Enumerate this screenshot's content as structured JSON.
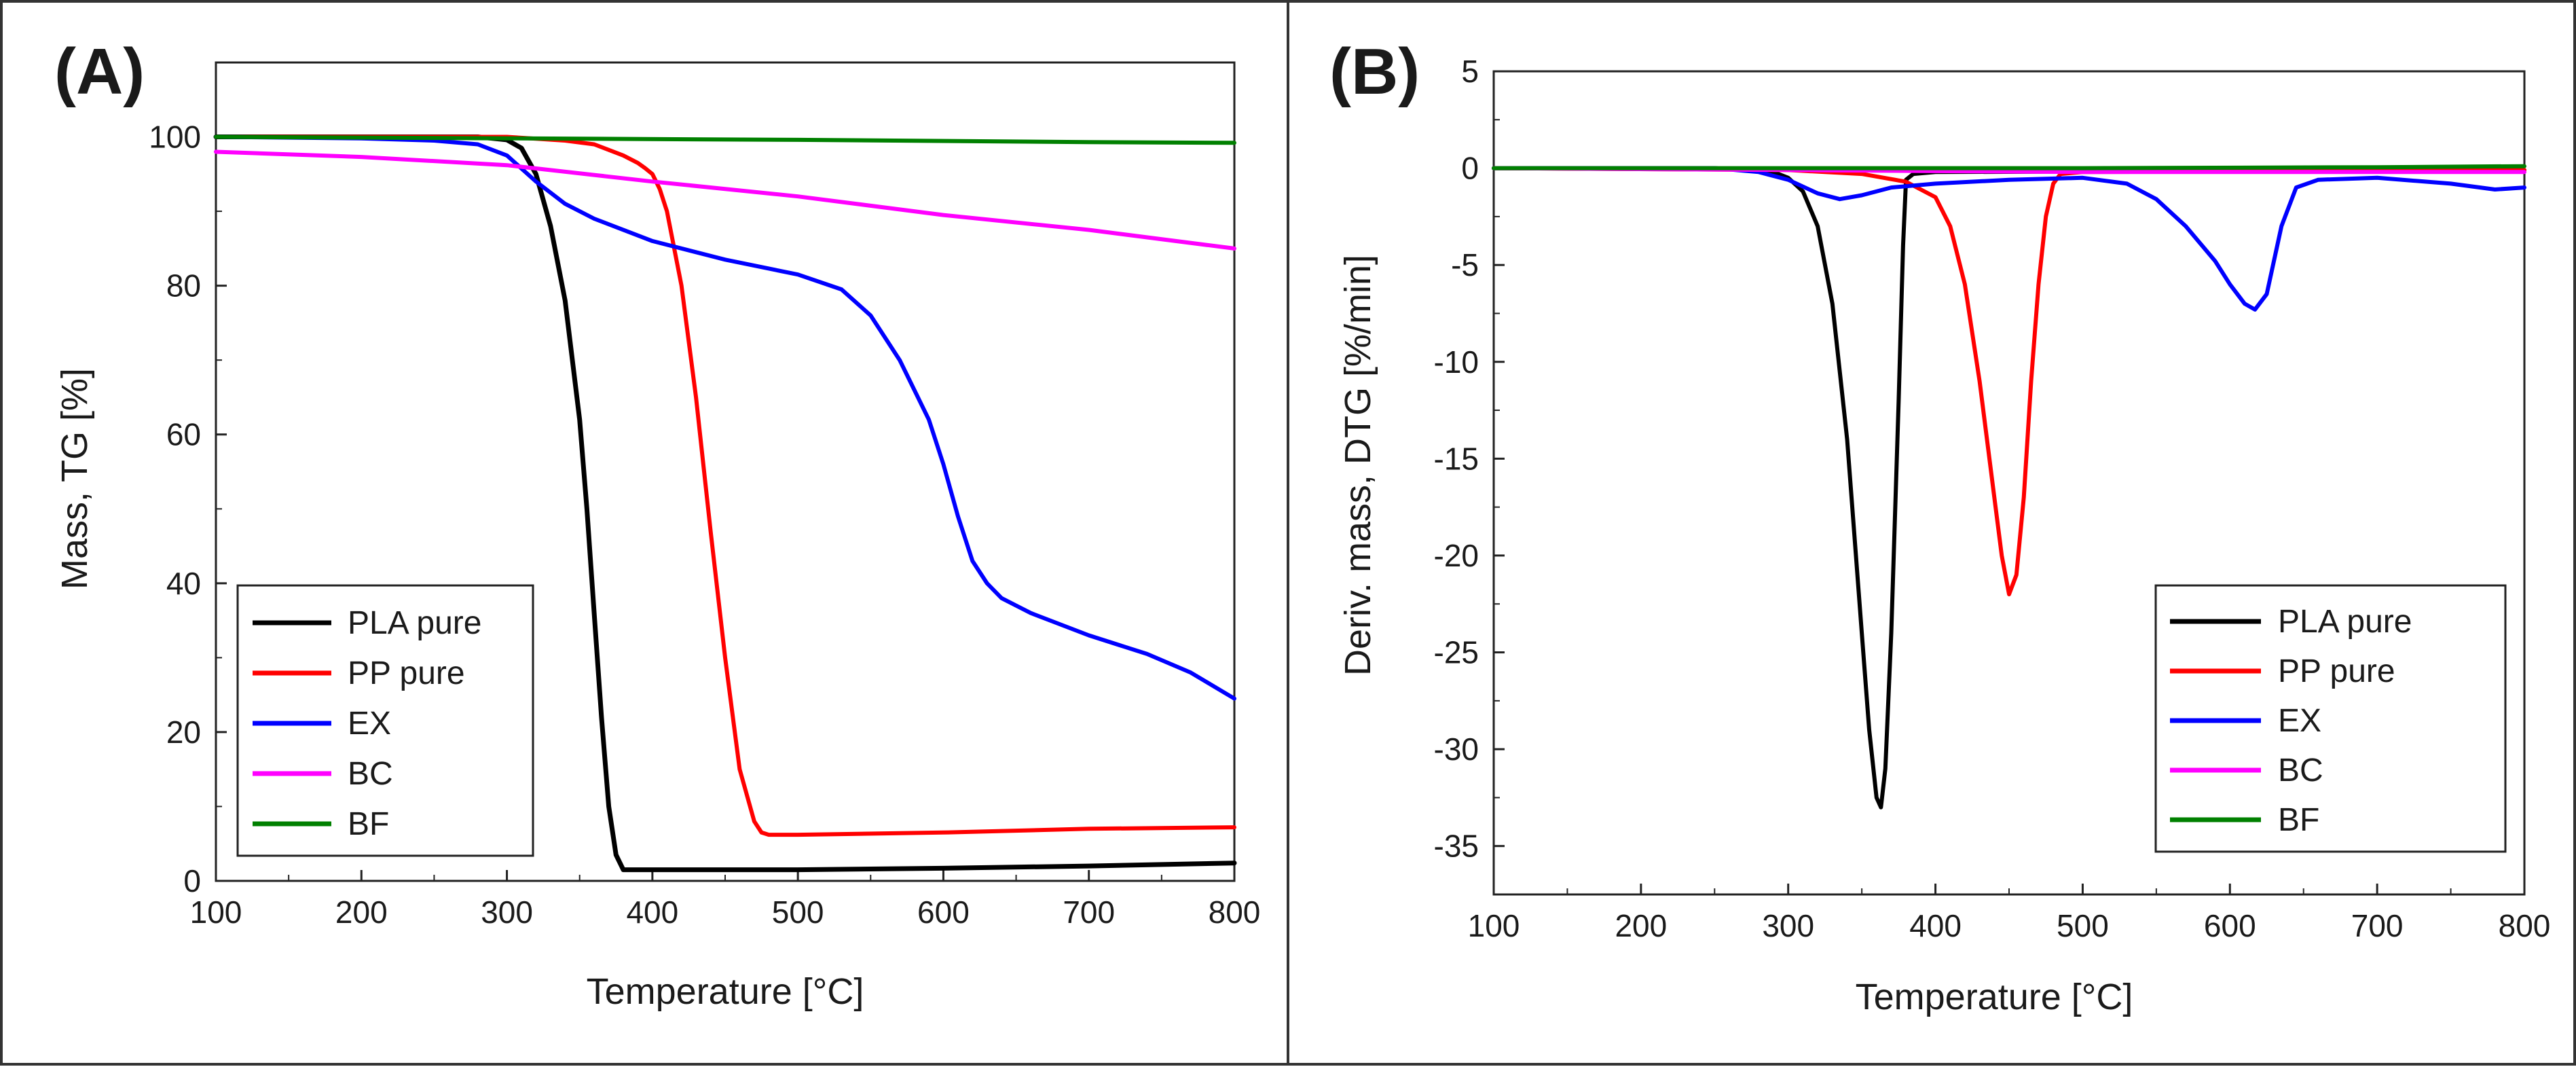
{
  "chart_data": [
    {
      "panel": "(A)",
      "type": "line",
      "xlabel": "Temperature [°C]",
      "ylabel": "Mass, TG [%]",
      "xlim": [
        100,
        800
      ],
      "ylim": [
        0,
        110
      ],
      "xticks": [
        100,
        200,
        300,
        400,
        500,
        600,
        700,
        800
      ],
      "yticks": [
        0,
        20,
        40,
        60,
        80,
        100
      ],
      "legend_position": "bottom-left",
      "series": [
        {
          "name": "PLA pure",
          "color": "#000000",
          "x": [
            100,
            200,
            280,
            300,
            310,
            320,
            330,
            340,
            350,
            355,
            360,
            365,
            370,
            375,
            380,
            400,
            500,
            600,
            700,
            800
          ],
          "y": [
            100,
            100,
            100,
            99.6,
            98.5,
            95,
            88,
            78,
            62,
            50,
            36,
            22,
            10,
            3.5,
            1.5,
            1.5,
            1.5,
            1.7,
            2,
            2.4
          ]
        },
        {
          "name": "PP pure",
          "color": "#ff0000",
          "x": [
            100,
            300,
            340,
            360,
            380,
            390,
            395,
            400,
            405,
            410,
            420,
            430,
            440,
            450,
            460,
            470,
            475,
            480,
            500,
            600,
            700,
            800
          ],
          "y": [
            100,
            100,
            99.5,
            99,
            97.5,
            96.5,
            95.8,
            95,
            93,
            90,
            80,
            65,
            47,
            30,
            15,
            8,
            6.5,
            6.2,
            6.2,
            6.5,
            7,
            7.2
          ]
        },
        {
          "name": "EX",
          "color": "#0000ff",
          "x": [
            100,
            200,
            250,
            280,
            300,
            320,
            340,
            360,
            400,
            450,
            500,
            530,
            550,
            570,
            590,
            600,
            610,
            620,
            630,
            640,
            660,
            700,
            740,
            770,
            800
          ],
          "y": [
            100,
            99.8,
            99.5,
            99,
            97.5,
            94,
            91,
            89,
            86,
            83.5,
            81.5,
            79.5,
            76,
            70,
            62,
            56,
            49,
            43,
            40,
            38,
            36,
            33,
            30.5,
            28,
            24.5
          ]
        },
        {
          "name": "BC",
          "color": "#ff00ff",
          "x": [
            100,
            200,
            300,
            400,
            500,
            600,
            700,
            800
          ],
          "y": [
            98,
            97.3,
            96.2,
            94,
            92,
            89.5,
            87.5,
            85
          ]
        },
        {
          "name": "BF",
          "color": "#008000",
          "x": [
            100,
            300,
            500,
            700,
            800
          ],
          "y": [
            100,
            99.8,
            99.6,
            99.3,
            99.2
          ]
        }
      ]
    },
    {
      "panel": "(B)",
      "type": "line",
      "xlabel": "Temperature [°C]",
      "ylabel": "Deriv. mass, DTG [%/min]",
      "xlim": [
        100,
        800
      ],
      "ylim": [
        -37.5,
        5
      ],
      "xticks": [
        100,
        200,
        300,
        400,
        500,
        600,
        700,
        800
      ],
      "yticks": [
        5,
        0,
        -5,
        -10,
        -15,
        -20,
        -25,
        -30,
        -35
      ],
      "legend_position": "bottom-right",
      "series": [
        {
          "name": "PLA pure",
          "color": "#000000",
          "x": [
            100,
            250,
            290,
            300,
            310,
            320,
            330,
            340,
            350,
            355,
            360,
            363,
            366,
            370,
            375,
            378,
            380,
            385,
            400,
            800
          ],
          "y": [
            0,
            0,
            -0.2,
            -0.5,
            -1.2,
            -3,
            -7,
            -14,
            -24,
            -29,
            -32.5,
            -33,
            -31,
            -24,
            -12,
            -4,
            -0.6,
            -0.3,
            -0.2,
            -0.1
          ]
        },
        {
          "name": "PP pure",
          "color": "#ff0000",
          "x": [
            100,
            300,
            350,
            380,
            400,
            410,
            420,
            430,
            440,
            445,
            450,
            455,
            460,
            465,
            470,
            475,
            480,
            485,
            500,
            800
          ],
          "y": [
            0,
            -0.1,
            -0.3,
            -0.7,
            -1.5,
            -3,
            -6,
            -11,
            -17,
            -20,
            -22,
            -21,
            -17,
            -11,
            -6,
            -2.5,
            -0.8,
            -0.3,
            -0.2,
            -0.1
          ]
        },
        {
          "name": "EX",
          "color": "#0000ff",
          "x": [
            100,
            250,
            280,
            300,
            320,
            335,
            350,
            370,
            400,
            450,
            500,
            530,
            550,
            570,
            590,
            600,
            610,
            617,
            625,
            635,
            645,
            660,
            700,
            750,
            780,
            800
          ],
          "y": [
            0,
            0,
            -0.2,
            -0.6,
            -1.3,
            -1.6,
            -1.4,
            -1,
            -0.8,
            -0.6,
            -0.5,
            -0.8,
            -1.6,
            -3,
            -4.8,
            -6,
            -7,
            -7.3,
            -6.5,
            -3,
            -1,
            -0.6,
            -0.5,
            -0.8,
            -1.1,
            -1
          ]
        },
        {
          "name": "BC",
          "color": "#ff00ff",
          "x": [
            100,
            300,
            500,
            700,
            800
          ],
          "y": [
            0,
            -0.1,
            -0.2,
            -0.2,
            -0.2
          ]
        },
        {
          "name": "BF",
          "color": "#008000",
          "x": [
            100,
            300,
            500,
            700,
            800
          ],
          "y": [
            0,
            0,
            0,
            0.05,
            0.1
          ]
        }
      ]
    }
  ]
}
